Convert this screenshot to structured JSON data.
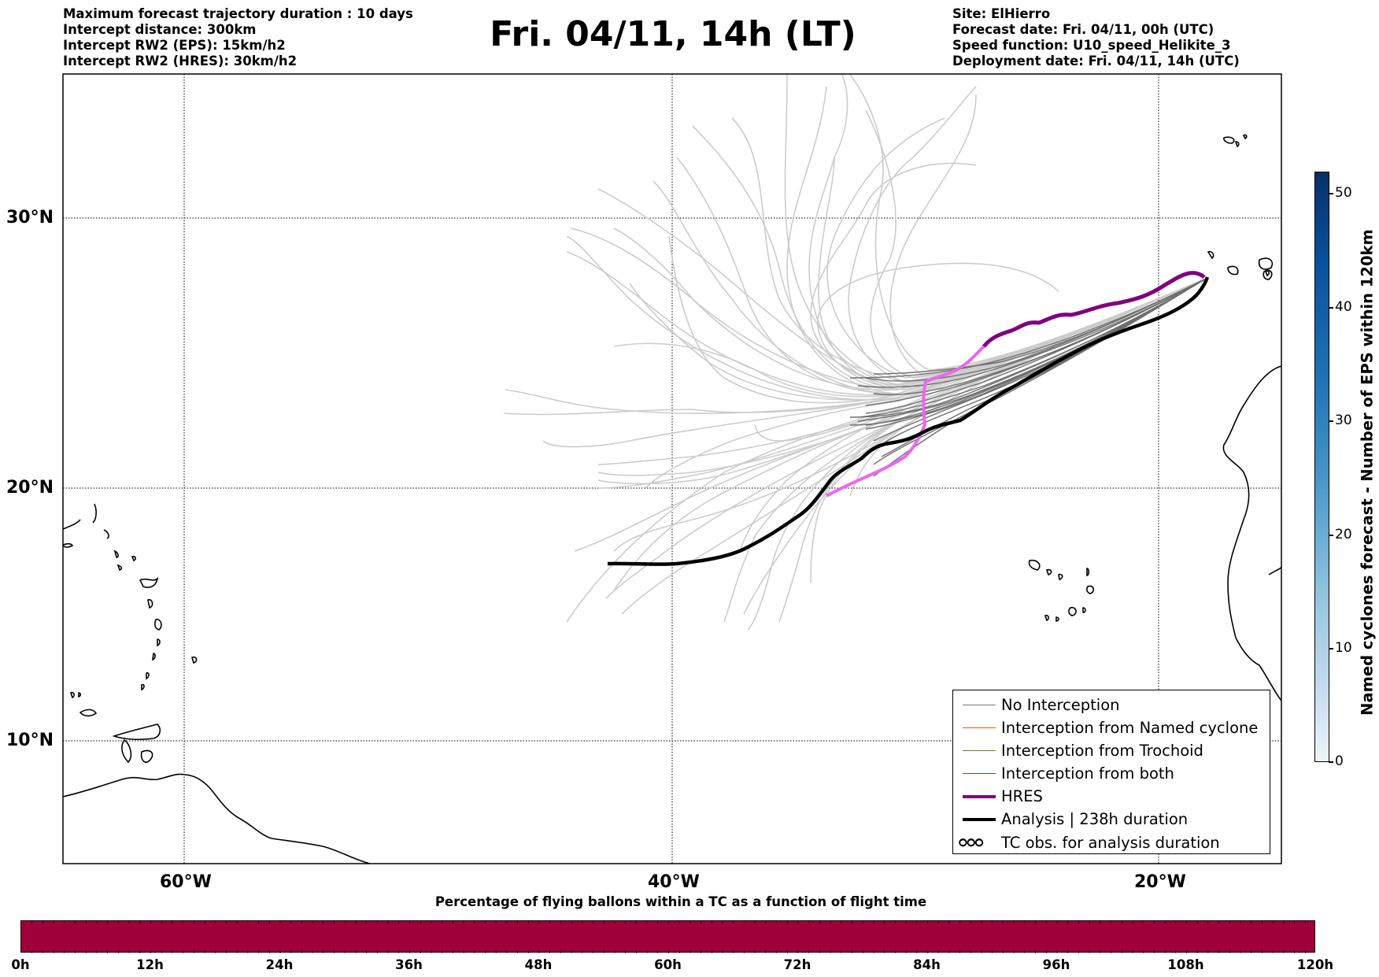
{
  "header": {
    "left": [
      "Maximum forecast trajectory duration : 10 days",
      "Intercept distance: 300km",
      "Intercept RW2 (EPS):  15km/h2",
      "Intercept RW2 (HRES): 30km/h2"
    ],
    "title": "Fri. 04/11, 14h (LT)",
    "right": [
      "Site: ElHierro",
      "Forecast date: Fri. 04/11, 00h (UTC)",
      "Speed function: U10_speed_Helikite_3",
      "Deployment date: Fri. 04/11, 14h (UTC)"
    ]
  },
  "map": {
    "lat_labels": [
      "30°N",
      "20°N",
      "10°N"
    ],
    "lon_labels": [
      "60°W",
      "40°W",
      "20°W"
    ],
    "colors": {
      "eps_tracks": "#c8c8c8",
      "no_interception": "#6e6e6e",
      "hres": "#800080",
      "hres_early": "#ee66ee",
      "analysis": "#000000",
      "coast": "#000000"
    }
  },
  "legend": {
    "items": [
      {
        "label": "No Interception",
        "color": "#777777",
        "style": "thin"
      },
      {
        "label": "Interception from Named cyclone",
        "color": "#e8551e",
        "style": "thin"
      },
      {
        "label": "Interception from Trochoid",
        "color": "#7a7a1a",
        "style": "thin"
      },
      {
        "label": "Interception from both",
        "color": "#1a7a1a",
        "style": "thin"
      },
      {
        "label": "HRES",
        "color": "#800080",
        "style": "thick"
      },
      {
        "label": "Analysis | 238h duration",
        "color": "#000000",
        "style": "thick"
      },
      {
        "label": "TC obs. for analysis duration",
        "color": "#000000",
        "style": "symbol",
        "symbol": "ഠഠഠ"
      }
    ]
  },
  "colorbar_right": {
    "label": "Named cyclones forecast - Number of EPS within 120km",
    "ticks": [
      "50",
      "40",
      "30",
      "20",
      "10",
      "0"
    ]
  },
  "colorbar_bottom": {
    "title": "Percentage of flying ballons within a TC as a function of flight time",
    "ticks": [
      "0h",
      "12h",
      "24h",
      "36h",
      "48h",
      "60h",
      "72h",
      "84h",
      "96h",
      "108h",
      "120h"
    ],
    "color": "#a0003a"
  }
}
